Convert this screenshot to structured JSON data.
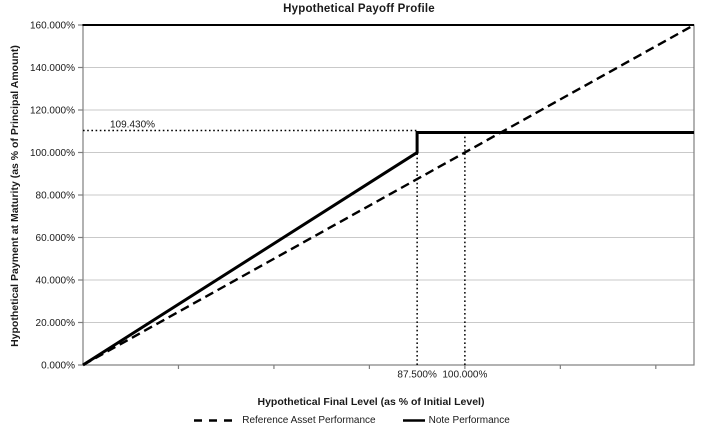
{
  "chart_data": {
    "type": "line",
    "title": "Hypothetical Payoff Profile",
    "xlabel": "Hypothetical Final Level (as % of Initial Level)",
    "ylabel": "Hypothetical Payment at Maturity  (as % of Principal Amount)",
    "xlim": [
      0,
      160
    ],
    "ylim": [
      0,
      160
    ],
    "grid": "horizontal-only",
    "legend_position": "bottom-center",
    "yticks": [
      0,
      20,
      40,
      60,
      80,
      100,
      120,
      140,
      160
    ],
    "ytick_labels": [
      "0.000%",
      "20.000%",
      "40.000%",
      "60.000%",
      "80.000%",
      "100.000%",
      "120.000%",
      "140.000%",
      "160.000%"
    ],
    "xticks_minor": [
      25,
      50,
      75,
      100,
      125,
      150
    ],
    "series": [
      {
        "name": "Reference Asset Performance",
        "style": "dashed",
        "points": [
          [
            0,
            0
          ],
          [
            160,
            160
          ]
        ]
      },
      {
        "name": "Note Performance",
        "style": "solid",
        "points": [
          [
            0,
            0
          ],
          [
            87.5,
            100
          ],
          [
            87.5,
            109.43
          ],
          [
            160,
            109.43
          ]
        ]
      }
    ],
    "annotations": {
      "cap_label": "109.430%",
      "cap_level": 109.43,
      "barrier_label": "87.500%",
      "barrier_level": 87.5,
      "initial_label": "100.000%",
      "initial_level": 100
    },
    "legend": [
      {
        "label": "Reference Asset Performance",
        "style": "dashed"
      },
      {
        "label": "Note Performance",
        "style": "solid"
      }
    ],
    "colors": {
      "line": "#000000",
      "grid": "#c9c9c9",
      "axis": "#7f7f7f",
      "text": "#1a1a1a",
      "background": "#ffffff"
    }
  }
}
